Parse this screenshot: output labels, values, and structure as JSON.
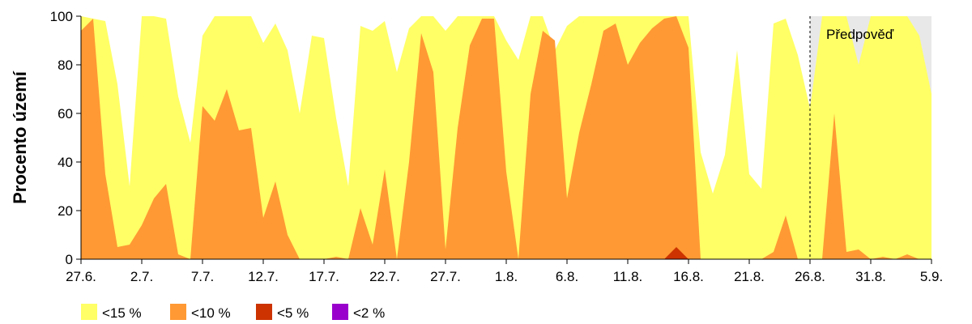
{
  "chart_data": {
    "type": "area",
    "ylabel": "Procento území",
    "ylim": [
      0,
      100
    ],
    "yticks": [
      0,
      20,
      40,
      60,
      80,
      100
    ],
    "x": [
      "27.6.",
      "28.6.",
      "29.6.",
      "30.6.",
      "1.7.",
      "2.7.",
      "3.7.",
      "4.7.",
      "5.7.",
      "6.7.",
      "7.7.",
      "8.7.",
      "9.7.",
      "10.7.",
      "11.7.",
      "12.7.",
      "13.7.",
      "14.7.",
      "15.7.",
      "16.7.",
      "17.7.",
      "18.7.",
      "19.7.",
      "20.7.",
      "21.7.",
      "22.7.",
      "23.7.",
      "24.7.",
      "25.7.",
      "26.7.",
      "27.7.",
      "28.7.",
      "29.7.",
      "30.7.",
      "31.7.",
      "1.8.",
      "2.8.",
      "3.8.",
      "4.8.",
      "5.8.",
      "6.8.",
      "7.8.",
      "8.8.",
      "9.8.",
      "10.8.",
      "11.8.",
      "12.8.",
      "13.8.",
      "14.8.",
      "15.8.",
      "16.8.",
      "17.8.",
      "18.8.",
      "19.8.",
      "20.8.",
      "21.8.",
      "22.8.",
      "23.8.",
      "24.8.",
      "25.8.",
      "26.8.",
      "27.8.",
      "28.8.",
      "29.8.",
      "30.8.",
      "31.8.",
      "1.9.",
      "2.9.",
      "3.9.",
      "4.9.",
      "5.9."
    ],
    "xtick_labels": [
      "27.6.",
      "2.7.",
      "7.7.",
      "12.7.",
      "17.7.",
      "22.7.",
      "27.7.",
      "1.8.",
      "6.8.",
      "11.8.",
      "16.8.",
      "21.8.",
      "26.8.",
      "31.8.",
      "5.9."
    ],
    "forecast_start": "26.8.",
    "forecast_label": "Předpověď",
    "forecast_shading": "#e8e8e8",
    "series": [
      {
        "name": "<15 %",
        "color": "#ffff66",
        "values": [
          100,
          99,
          98,
          72,
          30,
          100,
          100,
          99,
          67,
          48,
          92,
          100,
          100,
          100,
          100,
          89,
          97,
          86,
          60,
          92,
          91,
          58,
          30,
          96,
          94,
          98,
          77,
          95,
          100,
          100,
          94,
          100,
          100,
          100,
          100,
          90,
          82,
          100,
          100,
          86,
          96,
          100,
          100,
          100,
          100,
          100,
          100,
          100,
          100,
          100,
          100,
          44,
          27,
          43,
          86,
          35,
          29,
          97,
          99,
          84,
          62,
          100,
          100,
          100,
          80,
          100,
          100,
          100,
          100,
          92,
          68
        ]
      },
      {
        "name": "<10 %",
        "color": "#ff9933",
        "values": [
          94,
          99,
          35,
          5,
          6,
          14,
          25,
          31,
          2,
          0,
          63,
          57,
          70,
          53,
          54,
          17,
          32,
          10,
          0,
          0,
          0,
          1,
          0,
          21,
          6,
          37,
          0,
          40,
          93,
          77,
          4,
          54,
          88,
          99,
          99,
          36,
          0,
          68,
          94,
          90,
          25,
          52,
          72,
          94,
          97,
          80,
          89,
          95,
          99,
          100,
          87,
          0,
          0,
          0,
          0,
          0,
          0,
          3,
          18,
          0,
          0,
          0,
          60,
          3,
          4,
          0,
          1,
          0,
          2,
          0,
          0
        ]
      },
      {
        "name": "<5 %",
        "color": "#cc3300",
        "values": [
          0,
          0,
          0,
          0,
          0,
          0,
          0,
          0,
          0,
          0,
          0,
          0,
          0,
          0,
          0,
          0,
          0,
          0,
          0,
          0,
          0,
          0,
          0,
          0,
          0,
          0,
          0,
          0,
          0,
          0,
          0,
          0,
          0,
          0,
          0,
          0,
          0,
          0,
          0,
          0,
          0,
          0,
          0,
          0,
          0,
          0,
          0,
          0,
          0,
          5,
          0,
          0,
          0,
          0,
          0,
          0,
          0,
          0,
          0,
          0,
          0,
          0,
          0,
          0,
          0,
          0,
          0,
          0,
          0,
          0,
          0
        ]
      },
      {
        "name": "<2 %",
        "color": "#9900cc",
        "values": [
          0,
          0,
          0,
          0,
          0,
          0,
          0,
          0,
          0,
          0,
          0,
          0,
          0,
          0,
          0,
          0,
          0,
          0,
          0,
          0,
          0,
          0,
          0,
          0,
          0,
          0,
          0,
          0,
          0,
          0,
          0,
          0,
          0,
          0,
          0,
          0,
          0,
          0,
          0,
          0,
          0,
          0,
          0,
          0,
          0,
          0,
          0,
          0,
          0,
          0,
          0,
          0,
          0,
          0,
          0,
          0,
          0,
          0,
          0,
          0,
          0,
          0,
          0,
          0,
          0,
          0,
          0,
          0,
          0,
          0,
          0
        ]
      }
    ],
    "grid": false,
    "legend_position": "bottom-left"
  }
}
